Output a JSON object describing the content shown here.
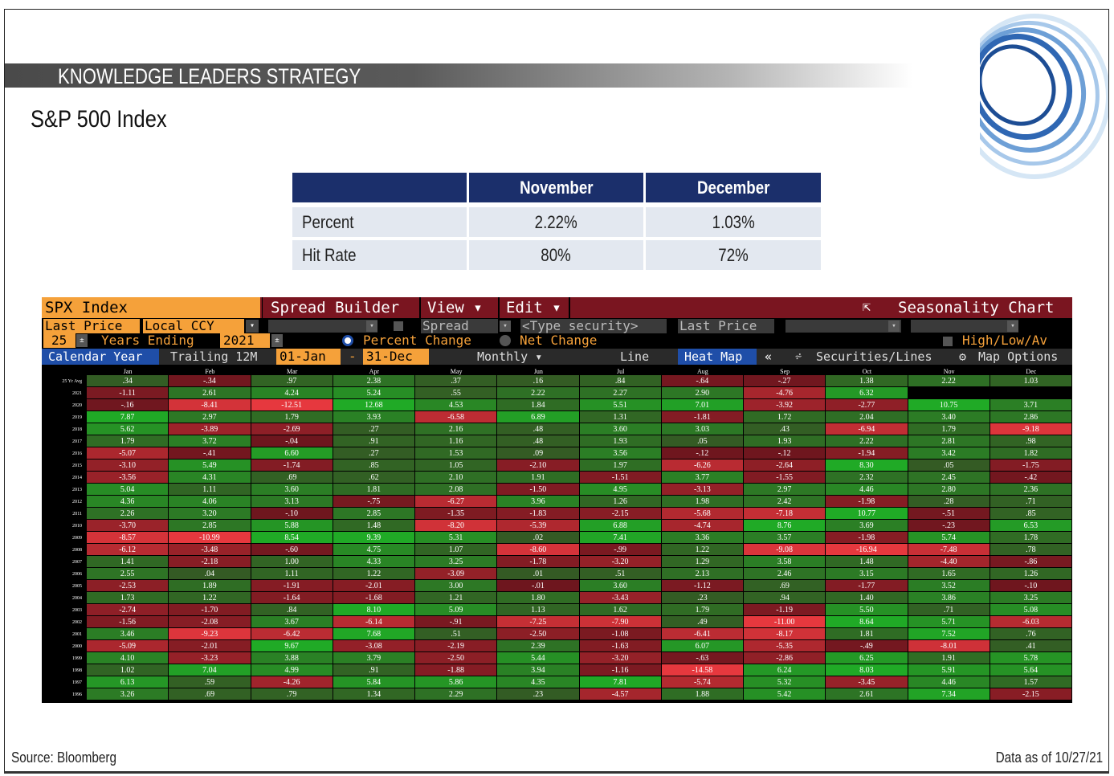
{
  "header": {
    "banner": "KNOWLEDGE LEADERS STRATEGY",
    "title": "S&P 500 Index"
  },
  "summary": {
    "columns": [
      "November",
      "December"
    ],
    "rows": [
      {
        "label": "Percent",
        "values": [
          "2.22%",
          "1.03%"
        ]
      },
      {
        "label": "Hit Rate",
        "values": [
          "80%",
          "72%"
        ]
      }
    ]
  },
  "terminal": {
    "row1": {
      "security": "SPX Index",
      "spread_builder": "Spread Builder",
      "view": "View ▾",
      "edit": "Edit ▾",
      "seasonality": "Seasonality Chart"
    },
    "row2": {
      "field": "Last Price",
      "currency": "Local CCY",
      "spread": "Spread",
      "type_security": "<Type security>",
      "last_price_2": "Last Price",
      "high_low": "High/Low/Av"
    },
    "row3": {
      "years": "25",
      "years_ending_label": "Years Ending",
      "year_end": "2021",
      "percent_change": "Percent Change",
      "net_change": "Net Change"
    },
    "row4": {
      "calendar_year": "Calendar Year",
      "trailing": "Trailing 12M",
      "start": "01-Jan",
      "dash": "-",
      "end": "31-Dec",
      "monthly": "Monthly ▾",
      "line": "Line",
      "heat_map": "Heat Map",
      "collapse": "«",
      "securities_lines": "Securities/Lines",
      "map_options": "Map Options"
    },
    "colors": {
      "orange": "#f5a13a",
      "maroon": "#7a1520",
      "blue_selected": "#1f4ea8",
      "green_strong": "#2ea52e",
      "red_strong": "#e4343c"
    }
  },
  "heatmap": {
    "months": [
      "Jan",
      "Feb",
      "Mar",
      "Apr",
      "May",
      "Jun",
      "Jul",
      "Aug",
      "Sep",
      "Oct",
      "Nov",
      "Dec"
    ],
    "rows": [
      {
        "label": "25 Yr Avg",
        "values": [
          ".34",
          "-.34",
          ".97",
          "2.38",
          ".37",
          ".16",
          ".84",
          "-.64",
          "-.27",
          "1.38",
          "2.22",
          "1.03"
        ]
      },
      {
        "label": "2021",
        "values": [
          "-1.11",
          "2.61",
          "4.24",
          "5.24",
          ".55",
          "2.22",
          "2.27",
          "2.90",
          "-4.76",
          "6.32",
          "",
          ""
        ]
      },
      {
        "label": "2020",
        "values": [
          "-.16",
          "-8.41",
          "-12.51",
          "12.68",
          "4.53",
          "1.84",
          "5.51",
          "7.01",
          "-3.92",
          "-2.77",
          "10.75",
          "3.71"
        ]
      },
      {
        "label": "2019",
        "values": [
          "7.87",
          "2.97",
          "1.79",
          "3.93",
          "-6.58",
          "6.89",
          "1.31",
          "-1.81",
          "1.72",
          "2.04",
          "3.40",
          "2.86"
        ]
      },
      {
        "label": "2018",
        "values": [
          "5.62",
          "-3.89",
          "-2.69",
          ".27",
          "2.16",
          ".48",
          "3.60",
          "3.03",
          ".43",
          "-6.94",
          "1.79",
          "-9.18"
        ]
      },
      {
        "label": "2017",
        "values": [
          "1.79",
          "3.72",
          "-.04",
          ".91",
          "1.16",
          ".48",
          "1.93",
          ".05",
          "1.93",
          "2.22",
          "2.81",
          ".98"
        ]
      },
      {
        "label": "2016",
        "values": [
          "-5.07",
          "-.41",
          "6.60",
          ".27",
          "1.53",
          ".09",
          "3.56",
          "-.12",
          "-.12",
          "-1.94",
          "3.42",
          "1.82"
        ]
      },
      {
        "label": "2015",
        "values": [
          "-3.10",
          "5.49",
          "-1.74",
          ".85",
          "1.05",
          "-2.10",
          "1.97",
          "-6.26",
          "-2.64",
          "8.30",
          ".05",
          "-1.75"
        ]
      },
      {
        "label": "2014",
        "values": [
          "-3.56",
          "4.31",
          ".69",
          ".62",
          "2.10",
          "1.91",
          "-1.51",
          "3.77",
          "-1.55",
          "2.32",
          "2.45",
          "-.42"
        ]
      },
      {
        "label": "2013",
        "values": [
          "5.04",
          "1.11",
          "3.60",
          "1.81",
          "2.08",
          "-1.50",
          "4.95",
          "-3.13",
          "2.97",
          "4.46",
          "2.80",
          "2.36"
        ]
      },
      {
        "label": "2012",
        "values": [
          "4.36",
          "4.06",
          "3.13",
          "-.75",
          "-6.27",
          "3.96",
          "1.26",
          "1.98",
          "2.42",
          "-1.98",
          ".28",
          ".71"
        ]
      },
      {
        "label": "2011",
        "values": [
          "2.26",
          "3.20",
          "-.10",
          "2.85",
          "-1.35",
          "-1.83",
          "-2.15",
          "-5.68",
          "-7.18",
          "10.77",
          "-.51",
          ".85"
        ]
      },
      {
        "label": "2010",
        "values": [
          "-3.70",
          "2.85",
          "5.88",
          "1.48",
          "-8.20",
          "-5.39",
          "6.88",
          "-4.74",
          "8.76",
          "3.69",
          "-.23",
          "6.53"
        ]
      },
      {
        "label": "2009",
        "values": [
          "-8.57",
          "-10.99",
          "8.54",
          "9.39",
          "5.31",
          ".02",
          "7.41",
          "3.36",
          "3.57",
          "-1.98",
          "5.74",
          "1.78"
        ]
      },
      {
        "label": "2008",
        "values": [
          "-6.12",
          "-3.48",
          "-.60",
          "4.75",
          "1.07",
          "-8.60",
          "-.99",
          "1.22",
          "-9.08",
          "-16.94",
          "-7.48",
          ".78"
        ]
      },
      {
        "label": "2007",
        "values": [
          "1.41",
          "-2.18",
          "1.00",
          "4.33",
          "3.25",
          "-1.78",
          "-3.20",
          "1.29",
          "3.58",
          "1.48",
          "-4.40",
          "-.86"
        ]
      },
      {
        "label": "2006",
        "values": [
          "2.55",
          ".04",
          "1.11",
          "1.22",
          "-3.09",
          ".01",
          ".51",
          "2.13",
          "2.46",
          "3.15",
          "1.65",
          "1.26"
        ]
      },
      {
        "label": "2005",
        "values": [
          "-2.53",
          "1.89",
          "-1.91",
          "-2.01",
          "3.00",
          "-.01",
          "3.60",
          "-1.12",
          ".69",
          "-1.77",
          "3.52",
          "-.10"
        ]
      },
      {
        "label": "2004",
        "values": [
          "1.73",
          "1.22",
          "-1.64",
          "-1.68",
          "1.21",
          "1.80",
          "-3.43",
          ".23",
          ".94",
          "1.40",
          "3.86",
          "3.25"
        ]
      },
      {
        "label": "2003",
        "values": [
          "-2.74",
          "-1.70",
          ".84",
          "8.10",
          "5.09",
          "1.13",
          "1.62",
          "1.79",
          "-1.19",
          "5.50",
          ".71",
          "5.08"
        ]
      },
      {
        "label": "2002",
        "values": [
          "-1.56",
          "-2.08",
          "3.67",
          "-6.14",
          "-.91",
          "-7.25",
          "-7.90",
          ".49",
          "-11.00",
          "8.64",
          "5.71",
          "-6.03"
        ]
      },
      {
        "label": "2001",
        "values": [
          "3.46",
          "-9.23",
          "-6.42",
          "7.68",
          ".51",
          "-2.50",
          "-1.08",
          "-6.41",
          "-8.17",
          "1.81",
          "7.52",
          ".76"
        ]
      },
      {
        "label": "2000",
        "values": [
          "-5.09",
          "-2.01",
          "9.67",
          "-3.08",
          "-2.19",
          "2.39",
          "-1.63",
          "6.07",
          "-5.35",
          "-.49",
          "-8.01",
          ".41"
        ]
      },
      {
        "label": "1999",
        "values": [
          "4.10",
          "-3.23",
          "3.88",
          "3.79",
          "-2.50",
          "5.44",
          "-3.20",
          "-.63",
          "-2.86",
          "6.25",
          "1.91",
          "5.78"
        ]
      },
      {
        "label": "1998",
        "values": [
          "1.02",
          "7.04",
          "4.99",
          ".91",
          "-1.88",
          "3.94",
          "-1.16",
          "-14.58",
          "6.24",
          "8.03",
          "5.91",
          "5.64"
        ]
      },
      {
        "label": "1997",
        "values": [
          "6.13",
          ".59",
          "-4.26",
          "5.84",
          "5.86",
          "4.35",
          "7.81",
          "-5.74",
          "5.32",
          "-3.45",
          "4.46",
          "1.57"
        ]
      },
      {
        "label": "1996",
        "values": [
          "3.26",
          ".69",
          ".79",
          "1.34",
          "2.29",
          ".23",
          "-4.57",
          "1.88",
          "5.42",
          "2.61",
          "7.34",
          "-2.15"
        ]
      }
    ]
  },
  "footer": {
    "source": "Source: Bloomberg",
    "as_of": "Data as of 10/27/21"
  }
}
